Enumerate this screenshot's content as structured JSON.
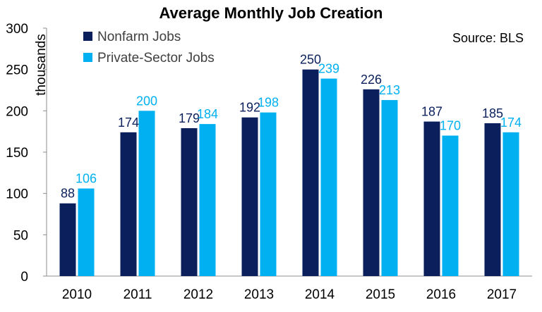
{
  "chart_data": {
    "type": "bar",
    "title": "Average Monthly Job Creation",
    "ylabel": "thousands",
    "xlabel": "",
    "source": "Source: BLS",
    "categories": [
      "2010",
      "2011",
      "2012",
      "2013",
      "2014",
      "2015",
      "2016",
      "2017"
    ],
    "series": [
      {
        "name": "Nonfarm Jobs",
        "color": "#0a1f5c",
        "label_color": "#0a1f5c",
        "values": [
          88,
          174,
          179,
          192,
          250,
          226,
          187,
          185
        ]
      },
      {
        "name": "Private-Sector Jobs",
        "color": "#00b0f0",
        "label_color": "#00b0f0",
        "values": [
          106,
          200,
          184,
          198,
          239,
          213,
          170,
          174
        ]
      }
    ],
    "ylim": [
      0,
      300
    ],
    "yticks": [
      0,
      50,
      100,
      150,
      200,
      250,
      300
    ],
    "grid": false,
    "legend_position": "top-left"
  }
}
